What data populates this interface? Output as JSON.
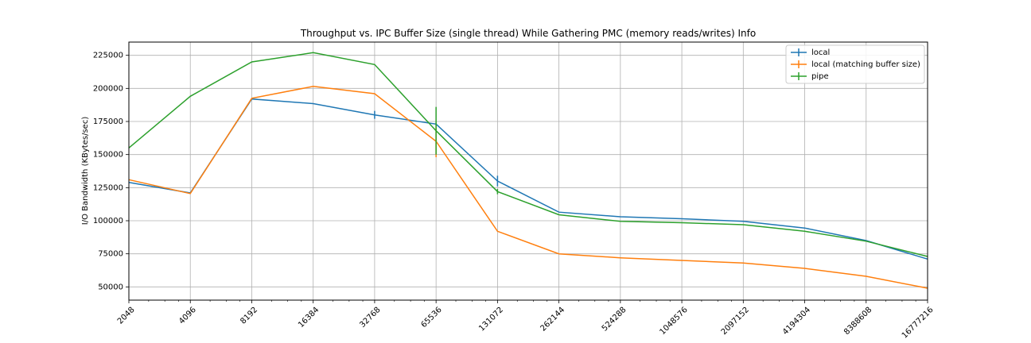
{
  "chart_data": {
    "type": "line",
    "title": "Throughput vs. IPC Buffer Size (single thread) While Gathering PMC (memory reads/writes) Info",
    "xlabel": "",
    "ylabel": "I/O Bandwidth (KBytes/sec)",
    "x_scale": "log2",
    "x": [
      2048,
      4096,
      8192,
      16384,
      32768,
      65536,
      131072,
      262144,
      524288,
      1048576,
      2097152,
      4194304,
      8388608,
      16777216
    ],
    "x_tick_labels": [
      "2048",
      "4096",
      "8192",
      "16384",
      "32768",
      "65536",
      "131072",
      "262144",
      "524288",
      "1048576",
      "2097152",
      "4194304",
      "8388608",
      "16777216"
    ],
    "ylim": [
      40000,
      235000
    ],
    "y_ticks": [
      50000,
      75000,
      100000,
      125000,
      150000,
      175000,
      200000,
      225000
    ],
    "y_tick_labels": [
      "50000",
      "75000",
      "100000",
      "125000",
      "150000",
      "175000",
      "200000",
      "225000"
    ],
    "grid": true,
    "legend_position": "top-right",
    "series": [
      {
        "name": "local",
        "color": "#1f77b4",
        "values": [
          129000,
          121000,
          192000,
          188500,
          180000,
          173000,
          130000,
          106500,
          103000,
          101500,
          99500,
          94500,
          85000,
          71000
        ],
        "errors": [
          0,
          0,
          0,
          0,
          3000,
          1000,
          4000,
          0,
          0,
          0,
          0,
          0,
          0,
          0
        ]
      },
      {
        "name": "local (matching buffer size)",
        "color": "#ff7f0e",
        "values": [
          131000,
          120500,
          192500,
          201500,
          196000,
          160000,
          92000,
          75000,
          72000,
          70000,
          68000,
          64000,
          58000,
          49000
        ],
        "errors": [
          0,
          0,
          0,
          0,
          0,
          12000,
          0,
          0,
          0,
          0,
          0,
          0,
          0,
          0
        ]
      },
      {
        "name": "pipe",
        "color": "#2ca02c",
        "values": [
          155000,
          194000,
          220000,
          227000,
          218000,
          168000,
          122000,
          104500,
          99500,
          98500,
          97000,
          92000,
          84500,
          73000
        ],
        "errors": [
          0,
          0,
          0,
          0,
          0,
          18000,
          2000,
          0,
          0,
          0,
          0,
          0,
          0,
          0
        ]
      }
    ]
  }
}
